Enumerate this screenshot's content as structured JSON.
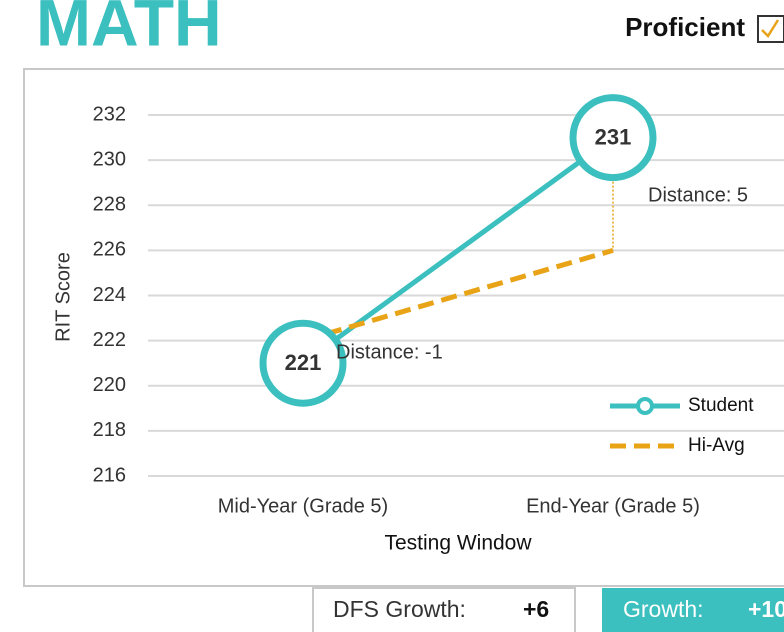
{
  "header": {
    "title": "MATH",
    "status": "Proficient"
  },
  "chart_data": {
    "type": "line",
    "xlabel": "Testing Window",
    "ylabel": "RIT Score",
    "categories": [
      "Mid-Year (Grade 5)",
      "End-Year (Grade 5)"
    ],
    "series": [
      {
        "name": "Student",
        "color": "#3bbfbf",
        "values": [
          221,
          231
        ]
      },
      {
        "name": "Hi-Avg",
        "color": "#e8a317",
        "values": [
          222,
          226
        ]
      }
    ],
    "annotations": [
      "Distance: -1",
      "Distance: 5"
    ],
    "ylim": [
      216,
      232
    ],
    "yticks": [
      216,
      218,
      220,
      222,
      224,
      226,
      228,
      230,
      232
    ],
    "grid": true,
    "legend": "lower right"
  },
  "footer": {
    "dfs_label": "DFS Growth:",
    "dfs_value": "+6",
    "growth_label": "Growth:",
    "growth_value": "+10"
  }
}
